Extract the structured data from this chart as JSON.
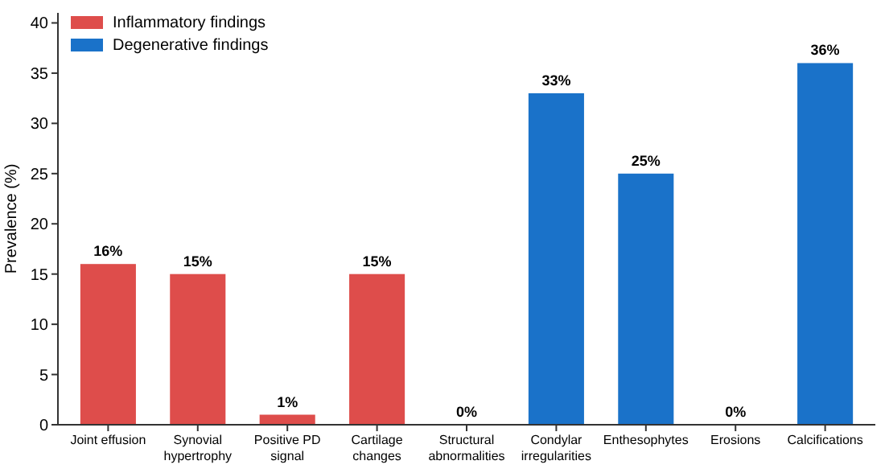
{
  "chart_data": {
    "type": "bar",
    "ylabel": "Prevalence (%)",
    "categories": [
      "Joint effusion",
      "Synovial hypertrophy",
      "Positive PD signal",
      "Cartilage changes",
      "Structural abnormalities",
      "Condylar irregularities",
      "Enthesophytes",
      "Erosions",
      "Calcifications"
    ],
    "series": [
      {
        "name": "Inflammatory findings",
        "color": "#de4d4b",
        "values": [
          16,
          15,
          1,
          15,
          null,
          null,
          null,
          null,
          null
        ],
        "value_labels": [
          "16%",
          "15%",
          "1%",
          "15%",
          null,
          null,
          null,
          null,
          null
        ]
      },
      {
        "name": "Degenerative findings",
        "color": "#1a72c9",
        "values": [
          null,
          null,
          null,
          null,
          0,
          33,
          25,
          0,
          36
        ],
        "value_labels": [
          null,
          null,
          null,
          null,
          "0%",
          "33%",
          "25%",
          "0%",
          "36%"
        ]
      }
    ],
    "ylim": [
      0,
      41
    ],
    "yticks": [
      0,
      5,
      10,
      15,
      20,
      25,
      30,
      35,
      40
    ],
    "legend": "top left",
    "grid": false
  }
}
